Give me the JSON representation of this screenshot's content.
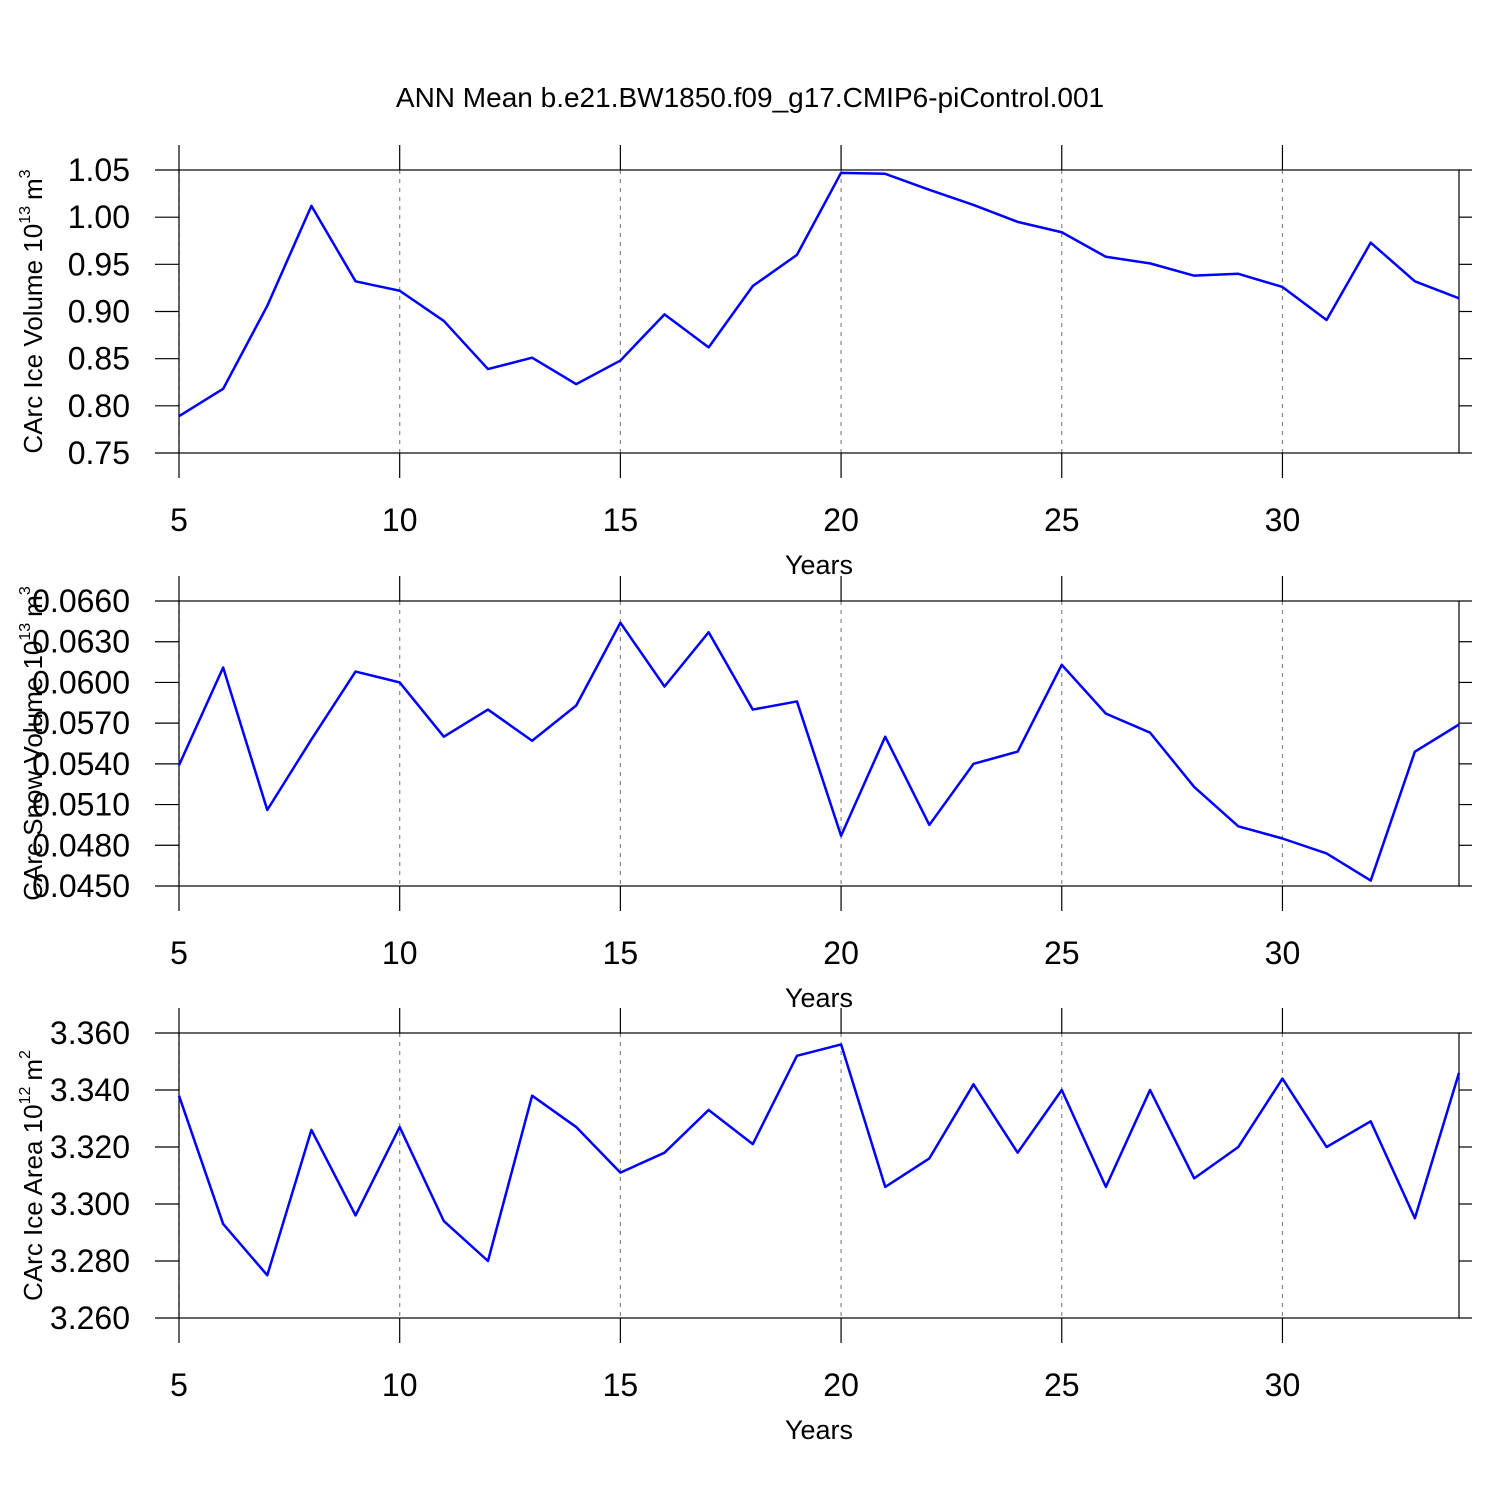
{
  "chart_data": [
    {
      "type": "line",
      "title": "ANN Mean b.e21.BW1850.f09_g17.CMIP6-piControl.001",
      "xlabel": "Years",
      "ylabel": [
        "CArc Ice Volume 10",
        "13",
        "m",
        "3"
      ],
      "x": [
        5,
        6,
        7,
        8,
        9,
        10,
        11,
        12,
        13,
        14,
        15,
        16,
        17,
        18,
        19,
        20,
        21,
        22,
        23,
        24,
        25,
        26,
        27,
        28,
        29,
        30,
        31,
        32,
        33,
        34
      ],
      "series": [
        {
          "color": "#0000ff",
          "values": [
            0.789,
            0.818,
            0.906,
            1.012,
            0.932,
            0.922,
            0.89,
            0.839,
            0.851,
            0.823,
            0.848,
            0.897,
            0.862,
            0.927,
            0.96,
            1.047,
            1.046,
            1.029,
            1.013,
            0.995,
            0.984,
            0.958,
            0.951,
            0.938,
            0.94,
            0.926,
            0.891,
            0.973,
            0.932,
            0.914
          ]
        }
      ],
      "xlim": [
        5,
        34
      ],
      "xticks": [
        5,
        10,
        15,
        20,
        25,
        30
      ],
      "ylim": [
        0.75,
        1.05
      ],
      "yticks": [
        0.75,
        {
          "value": 0.8,
          "label": "0.80"
        },
        0.85,
        {
          "value": 0.9,
          "label": "0.90"
        },
        0.95,
        {
          "value": 1.0,
          "label": "1.00"
        },
        1.05
      ],
      "grid": true
    },
    {
      "type": "line",
      "xlabel": "Years",
      "ylabel": [
        "CArc Snow Volume 10",
        "13",
        "m",
        "3"
      ],
      "x": [
        5,
        6,
        7,
        8,
        9,
        10,
        11,
        12,
        13,
        14,
        15,
        16,
        17,
        18,
        19,
        20,
        21,
        22,
        23,
        24,
        25,
        26,
        27,
        28,
        29,
        30,
        31,
        32,
        33,
        34
      ],
      "series": [
        {
          "color": "#0000ff",
          "values": [
            0.0539,
            0.0611,
            0.0506,
            0.0558,
            0.0608,
            0.06,
            0.056,
            0.058,
            0.0557,
            0.0583,
            0.0644,
            0.0597,
            0.0637,
            0.058,
            0.0586,
            0.0487,
            0.056,
            0.0495,
            0.054,
            0.0549,
            0.0613,
            0.0577,
            0.0563,
            0.0523,
            0.0494,
            0.0485,
            0.0474,
            0.0454,
            0.0549,
            0.0569
          ]
        }
      ],
      "xlim": [
        5,
        34
      ],
      "xticks": [
        5,
        10,
        15,
        20,
        25,
        30
      ],
      "ylim": [
        0.045,
        0.066
      ],
      "yticks": [
        {
          "value": 0.045,
          "label": "0.0450"
        },
        {
          "value": 0.048,
          "label": "0.0480"
        },
        {
          "value": 0.051,
          "label": "0.0510"
        },
        {
          "value": 0.054,
          "label": "0.0540"
        },
        {
          "value": 0.057,
          "label": "0.0570"
        },
        {
          "value": 0.06,
          "label": "0.0600"
        },
        {
          "value": 0.063,
          "label": "0.0630"
        },
        {
          "value": 0.066,
          "label": "0.0660"
        }
      ],
      "grid": true
    },
    {
      "type": "line",
      "xlabel": "Years",
      "ylabel": [
        "CArc Ice Area 10",
        "12",
        "m",
        "2"
      ],
      "x": [
        5,
        6,
        7,
        8,
        9,
        10,
        11,
        12,
        13,
        14,
        15,
        16,
        17,
        18,
        19,
        20,
        21,
        22,
        23,
        24,
        25,
        26,
        27,
        28,
        29,
        30,
        31,
        32,
        33,
        34
      ],
      "series": [
        {
          "color": "#0000ff",
          "values": [
            3.338,
            3.293,
            3.275,
            3.326,
            3.296,
            3.327,
            3.294,
            3.28,
            3.338,
            3.327,
            3.311,
            3.318,
            3.333,
            3.321,
            3.352,
            3.356,
            3.306,
            3.316,
            3.342,
            3.318,
            3.34,
            3.306,
            3.34,
            3.309,
            3.32,
            3.344,
            3.32,
            3.329,
            3.295,
            3.346
          ]
        }
      ],
      "xlim": [
        5,
        34
      ],
      "xticks": [
        5,
        10,
        15,
        20,
        25,
        30
      ],
      "ylim": [
        3.26,
        3.36
      ],
      "yticks": [
        {
          "value": 3.26,
          "label": "3.260"
        },
        {
          "value": 3.28,
          "label": "3.280"
        },
        {
          "value": 3.3,
          "label": "3.300"
        },
        {
          "value": 3.32,
          "label": "3.320"
        },
        {
          "value": 3.34,
          "label": "3.340"
        },
        {
          "value": 3.36,
          "label": "3.360"
        }
      ],
      "grid": true
    }
  ]
}
